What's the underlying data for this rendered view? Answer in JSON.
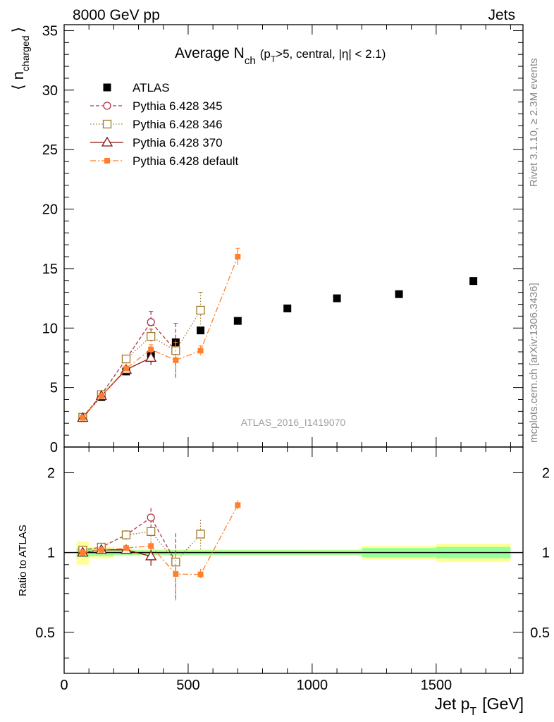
{
  "header": {
    "energy_label": "8000 GeV pp",
    "category_label": "Jets",
    "analysis_id": "ATLAS_2016_I1419070",
    "side_label_rivet": "Rivet 3.1.10, ≥ 2.3M events",
    "side_label_source": "mcplots.cern.ch [arXiv:1306.3436]"
  },
  "title": {
    "main": "Average N",
    "main_sub": "ch",
    "cond_a": "(p",
    "cond_sub": "T",
    "cond_b": ">5, central, |η| < 2.1)"
  },
  "axes": {
    "ylabel_main": "⟨ n",
    "ylabel_main_sub": "charged",
    "ylabel_main_close": "⟩",
    "ylabel_ratio": "Ratio to ATLAS",
    "xlabel": "Jet p",
    "xlabel_sub": "T",
    "xlabel_unit": "[GeV]",
    "x_ticks": [
      "0",
      "500",
      "1000",
      "1500"
    ],
    "y_ticks_main": [
      "0",
      "5",
      "10",
      "15",
      "20",
      "25",
      "30",
      "35"
    ],
    "y_ticks_ratio": [
      "0.5",
      "1",
      "2"
    ]
  },
  "legend": [
    {
      "label": "ATLAS",
      "color": "#000000",
      "marker": "filled-square",
      "line": "none"
    },
    {
      "label": "Pythia 6.428 345",
      "color": "#b0304a",
      "marker": "open-circle",
      "line": "dashed"
    },
    {
      "label": "Pythia 6.428 346",
      "color": "#a07828",
      "marker": "open-square",
      "line": "dotted"
    },
    {
      "label": "Pythia 6.428 370",
      "color": "#8b1010",
      "marker": "open-triangle",
      "line": "solid"
    },
    {
      "label": "Pythia 6.428 default",
      "color": "#ff7f2a",
      "marker": "small-filled-square",
      "line": "dashdot"
    }
  ],
  "chart_data": {
    "type": "scatter",
    "title": "Average Nch (pT>5, central, |eta| < 2.1)",
    "xlabel": "Jet pT [GeV]",
    "ylabel": "<n_charged>",
    "xlim": [
      0,
      1850
    ],
    "ylim": [
      0,
      35.5
    ],
    "ratio_ylim_log": [
      0.35,
      2.5
    ],
    "ratio_ylabel": "Ratio to ATLAS",
    "data": {
      "name": "ATLAS",
      "x": [
        75,
        150,
        250,
        350,
        450,
        550,
        700,
        900,
        1100,
        1350,
        1650
      ],
      "y": [
        2.45,
        4.2,
        6.35,
        7.75,
        8.8,
        9.8,
        10.6,
        11.65,
        12.5,
        12.85,
        13.95
      ],
      "x_bins": [
        [
          50,
          100
        ],
        [
          100,
          200
        ],
        [
          200,
          300
        ],
        [
          300,
          400
        ],
        [
          400,
          500
        ],
        [
          500,
          600
        ],
        [
          600,
          800
        ],
        [
          800,
          1000
        ],
        [
          1000,
          1200
        ],
        [
          1200,
          1500
        ],
        [
          1500,
          1800
        ]
      ],
      "band_stat_rel": [
        0.04,
        0.03,
        0.02,
        0.02,
        0.02,
        0.02,
        0.02,
        0.02,
        0.02,
        0.04,
        0.05
      ],
      "band_tot_rel": [
        0.1,
        0.05,
        0.03,
        0.03,
        0.03,
        0.03,
        0.03,
        0.03,
        0.03,
        0.06,
        0.08
      ]
    },
    "series": [
      {
        "name": "Pythia 6.428 345",
        "x": [
          75,
          150,
          250,
          350,
          450
        ],
        "y": [
          2.5,
          4.4,
          7.4,
          10.5,
          8.1
        ],
        "err": [
          0.05,
          0.1,
          0.3,
          0.9,
          2.3
        ]
      },
      {
        "name": "Pythia 6.428 346",
        "x": [
          75,
          150,
          250,
          350,
          450,
          550
        ],
        "y": [
          2.5,
          4.4,
          7.4,
          9.3,
          8.1,
          11.5
        ],
        "err": [
          0.05,
          0.1,
          0.3,
          0.6,
          2.3,
          1.5
        ]
      },
      {
        "name": "Pythia 6.428 370",
        "x": [
          75,
          150,
          250,
          350
        ],
        "y": [
          2.45,
          4.3,
          6.5,
          7.5
        ],
        "err": [
          0.05,
          0.1,
          0.2,
          0.6
        ]
      },
      {
        "name": "Pythia 6.428 default",
        "x": [
          75,
          150,
          250,
          350,
          450,
          550,
          700
        ],
        "y": [
          2.45,
          4.3,
          6.6,
          8.2,
          7.3,
          8.1,
          16.0
        ],
        "err": [
          0.05,
          0.1,
          0.2,
          0.4,
          1.5,
          0.4,
          0.7
        ]
      }
    ]
  }
}
